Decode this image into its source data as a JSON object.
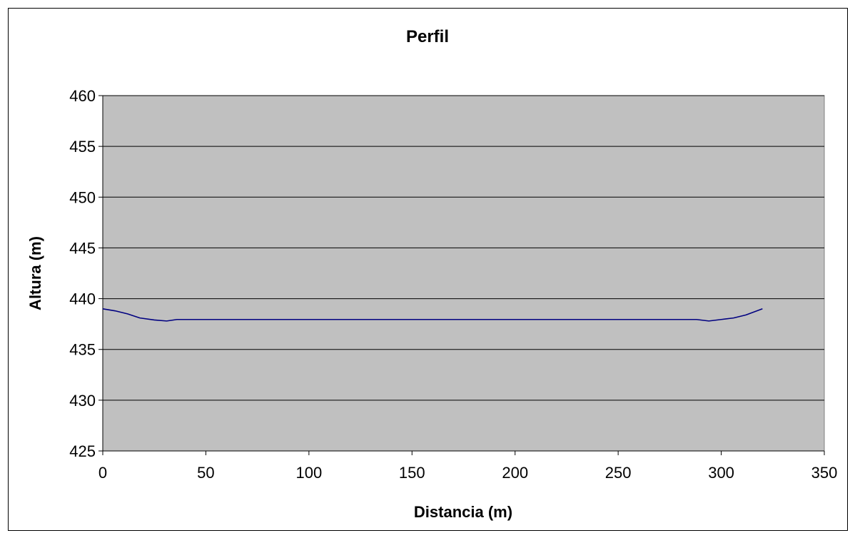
{
  "chart_data": {
    "type": "line",
    "title": "Perfil",
    "xlabel": "Distancia (m)",
    "ylabel": "Altura (m)",
    "xlim": [
      0,
      350
    ],
    "ylim": [
      425,
      460
    ],
    "x_ticks": [
      0,
      50,
      100,
      150,
      200,
      250,
      300,
      350
    ],
    "y_ticks": [
      425,
      430,
      435,
      440,
      445,
      450,
      455,
      460
    ],
    "grid": "horizontal",
    "legend": "none",
    "colors": {
      "plot_background": "#c0c0c0",
      "series_line": "#000080",
      "gridline": "#000000"
    },
    "series": [
      {
        "x": [
          0,
          6,
          12,
          18,
          25,
          31,
          36,
          50,
          100,
          150,
          200,
          250,
          280,
          288,
          294,
          300,
          306,
          312,
          320
        ],
        "y": [
          439.0,
          438.8,
          438.5,
          438.1,
          437.9,
          437.8,
          437.95,
          437.95,
          437.95,
          437.95,
          437.95,
          437.95,
          437.95,
          437.95,
          437.8,
          437.95,
          438.1,
          438.4,
          439.0
        ]
      }
    ]
  }
}
